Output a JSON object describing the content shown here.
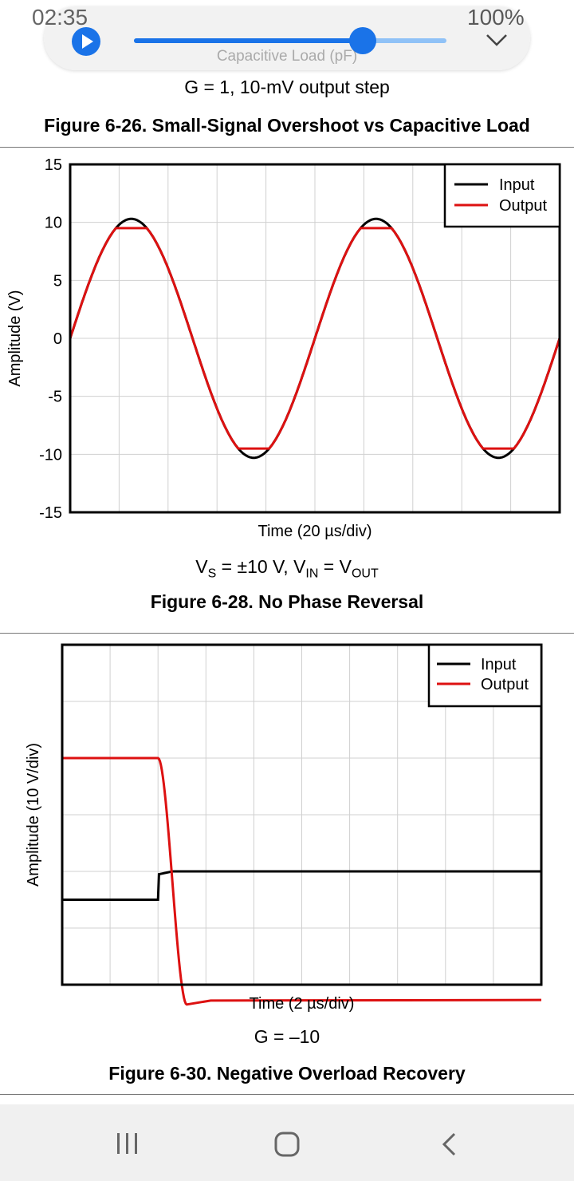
{
  "status_bar": {
    "time": "02:35",
    "battery": "100%"
  },
  "media_overlay": {
    "subtitle": "Capacitive Load (pF)",
    "progress": 0.74
  },
  "figure_26": {
    "caption": "G = 1, 10-mV output step",
    "title": "Figure 6-26. Small-Signal Overshoot vs Capacitive Load"
  },
  "figure_28": {
    "conditions_vs": "V",
    "title": "Figure 6-28. No Phase Reversal",
    "chart_data": {
      "type": "line",
      "title": "",
      "xlabel": "Time (20 µs/div)",
      "ylabel": "Amplitude (V)",
      "ylim": [
        -15,
        15
      ],
      "yticks": [
        "15",
        "10",
        "5",
        "0",
        "-5",
        "-10",
        "-15"
      ],
      "x_divisions": 10,
      "grid": true,
      "legend": {
        "position": "top-right",
        "entries": [
          "Input",
          "Output"
        ]
      },
      "series": [
        {
          "name": "Input",
          "color": "#000000",
          "description_values": {
            "amplitude": 10.3,
            "periods": 2
          }
        },
        {
          "name": "Output",
          "color": "#dd1111",
          "description_values": {
            "clip_high": 9.5,
            "clip_low": -9.5
          }
        }
      ]
    },
    "caption_parts": {
      "vs": "V",
      "vs_sub": "S",
      "vs_val": " = ±10 V, V",
      "vin_sub": "IN",
      "eq": " = V",
      "vout_sub": "OUT"
    }
  },
  "figure_30": {
    "caption": "G = –10",
    "title": "Figure 6-30. Negative Overload Recovery",
    "chart_data": {
      "type": "line",
      "title": "",
      "xlabel": "Time (2 µs/div)",
      "ylabel": "Amplitude (10 V/div)",
      "x_divisions": 10,
      "y_divisions": 6,
      "grid": true,
      "legend": {
        "position": "top-right",
        "entries": [
          "Input",
          "Output"
        ]
      },
      "series": [
        {
          "name": "Input",
          "color": "#000000",
          "levels_div": {
            "before": -1.5,
            "after": -1.0
          },
          "step_at_div": 2.0
        },
        {
          "name": "Output",
          "color": "#dd1111",
          "levels_div": {
            "before": 1.0,
            "after": -3.3
          },
          "fall_start_div": 2.0,
          "fall_end_div": 2.6
        }
      ]
    }
  },
  "nav": {
    "recents": "recents-icon",
    "home": "home-icon",
    "back": "back-icon"
  }
}
